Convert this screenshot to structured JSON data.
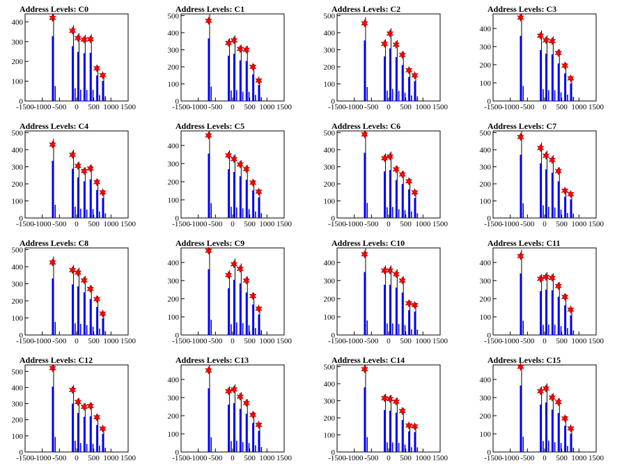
{
  "chart_data": [
    {
      "type": "bar",
      "title": "Address Levels: C0",
      "xlim": [
        -1500,
        1500
      ],
      "ylim": [
        0,
        440
      ],
      "yticks": [
        0,
        100,
        200,
        300,
        400
      ],
      "xticks": [
        -1500,
        -1000,
        -500,
        0,
        500,
        1000,
        1500
      ],
      "xtick_labels": [
        "-1500",
        "-1000",
        "-500",
        "0",
        "500",
        "1000",
        "1500"
      ],
      "peaks_x": [
        -700,
        -120,
        40,
        220,
        400,
        590,
        760
      ],
      "peaks_y": [
        420,
        355,
        318,
        310,
        312,
        165,
        130
      ],
      "colors": {
        "hist": "#0000ff",
        "peak_line": "#000000",
        "marker": "#ff0000"
      }
    },
    {
      "type": "bar",
      "title": "Address Levels: C1",
      "xlim": [
        -1500,
        1500
      ],
      "ylim": [
        0,
        510
      ],
      "yticks": [
        0,
        100,
        200,
        300,
        400,
        500
      ],
      "xticks": [
        -1500,
        -1000,
        -500,
        0,
        500,
        1000,
        1500
      ],
      "xtick_labels": [
        "-1500",
        "-1000",
        "-500",
        "0",
        "500",
        "1000",
        "1500"
      ],
      "peaks_x": [
        -700,
        -120,
        40,
        220,
        400,
        590,
        760
      ],
      "peaks_y": [
        470,
        340,
        355,
        305,
        300,
        200,
        120
      ],
      "colors": {
        "hist": "#0000ff",
        "peak_line": "#000000",
        "marker": "#ff0000"
      }
    },
    {
      "type": "bar",
      "title": "Address Levels: C2",
      "xlim": [
        -1500,
        1500
      ],
      "ylim": [
        0,
        510
      ],
      "yticks": [
        0,
        100,
        200,
        300,
        400,
        500
      ],
      "xticks": [
        -1500,
        -1000,
        -500,
        0,
        500,
        1000,
        1500
      ],
      "xtick_labels": [
        "-1500",
        "-1000",
        "-500",
        "0",
        "500",
        "1000",
        "1500"
      ],
      "peaks_x": [
        -700,
        -120,
        40,
        220,
        400,
        590,
        760
      ],
      "peaks_y": [
        455,
        335,
        395,
        330,
        270,
        180,
        150
      ],
      "colors": {
        "hist": "#0000ff",
        "peak_line": "#000000",
        "marker": "#ff0000"
      }
    },
    {
      "type": "bar",
      "title": "Address Levels: C3",
      "xlim": [
        -1500,
        1500
      ],
      "ylim": [
        0,
        480
      ],
      "yticks": [
        0,
        100,
        200,
        300,
        400
      ],
      "xticks": [
        -1500,
        -1000,
        -500,
        0,
        500,
        1000,
        1500
      ],
      "xtick_labels": [
        "-1500",
        "-1000",
        "-500",
        "0",
        "500",
        "1000",
        "1500"
      ],
      "peaks_x": [
        -700,
        -120,
        40,
        220,
        400,
        590,
        760
      ],
      "peaks_y": [
        460,
        360,
        335,
        330,
        265,
        195,
        125
      ],
      "colors": {
        "hist": "#0000ff",
        "peak_line": "#000000",
        "marker": "#ff0000"
      }
    },
    {
      "type": "bar",
      "title": "Address Levels: C4",
      "xlim": [
        -1500,
        1500
      ],
      "ylim": [
        0,
        510
      ],
      "yticks": [
        0,
        100,
        200,
        300,
        400,
        500
      ],
      "xticks": [
        -1500,
        -1000,
        -500,
        0,
        500,
        1000,
        1500
      ],
      "xtick_labels": [
        "-1500",
        "-1000",
        "-500",
        "0",
        "500",
        "1000",
        "1500"
      ],
      "peaks_x": [
        -700,
        -120,
        40,
        220,
        400,
        590,
        760
      ],
      "peaks_y": [
        430,
        370,
        305,
        275,
        290,
        210,
        150
      ],
      "colors": {
        "hist": "#0000ff",
        "peak_line": "#000000",
        "marker": "#ff0000"
      }
    },
    {
      "type": "bar",
      "title": "Address Levels: C5",
      "xlim": [
        -1500,
        1500
      ],
      "ylim": [
        0,
        480
      ],
      "yticks": [
        0,
        100,
        200,
        300,
        400
      ],
      "xticks": [
        -1500,
        -1000,
        -500,
        0,
        500,
        1000,
        1500
      ],
      "xtick_labels": [
        "-1500",
        "-1000",
        "-500",
        "0",
        "500",
        "1000",
        "1500"
      ],
      "peaks_x": [
        -700,
        -120,
        40,
        220,
        400,
        590,
        760
      ],
      "peaks_y": [
        455,
        345,
        325,
        295,
        270,
        195,
        145
      ],
      "colors": {
        "hist": "#0000ff",
        "peak_line": "#000000",
        "marker": "#ff0000"
      }
    },
    {
      "type": "bar",
      "title": "Address Levels: C6",
      "xlim": [
        -1500,
        1500
      ],
      "ylim": [
        0,
        510
      ],
      "yticks": [
        0,
        100,
        200,
        300,
        400,
        500
      ],
      "xticks": [
        -1500,
        -1000,
        -500,
        0,
        500,
        1000,
        1500
      ],
      "xtick_labels": [
        "-1500",
        "-1000",
        "-500",
        "0",
        "500",
        "1000",
        "1500"
      ],
      "peaks_x": [
        -700,
        -120,
        40,
        220,
        400,
        590,
        760
      ],
      "peaks_y": [
        490,
        350,
        360,
        285,
        255,
        215,
        150
      ],
      "colors": {
        "hist": "#0000ff",
        "peak_line": "#000000",
        "marker": "#ff0000"
      }
    },
    {
      "type": "bar",
      "title": "Address Levels: C7",
      "xlim": [
        -1500,
        1500
      ],
      "ylim": [
        0,
        510
      ],
      "yticks": [
        0,
        100,
        200,
        300,
        400,
        500
      ],
      "xticks": [
        -1500,
        -1000,
        -500,
        0,
        500,
        1000,
        1500
      ],
      "xtick_labels": [
        "-1500",
        "-1000",
        "-500",
        "0",
        "500",
        "1000",
        "1500"
      ],
      "peaks_x": [
        -700,
        -120,
        40,
        220,
        400,
        590,
        760
      ],
      "peaks_y": [
        475,
        410,
        365,
        340,
        275,
        160,
        140
      ],
      "colors": {
        "hist": "#0000ff",
        "peak_line": "#000000",
        "marker": "#ff0000"
      }
    },
    {
      "type": "bar",
      "title": "Address Levels: C8",
      "xlim": [
        -1500,
        1500
      ],
      "ylim": [
        0,
        510
      ],
      "yticks": [
        0,
        100,
        200,
        300,
        400,
        500
      ],
      "xticks": [
        -1500,
        -1000,
        -500,
        0,
        500,
        1000,
        1500
      ],
      "xtick_labels": [
        "-1500",
        "-1000",
        "-500",
        "0",
        "500",
        "1000",
        "1500"
      ],
      "peaks_x": [
        -700,
        -120,
        40,
        220,
        400,
        590,
        760
      ],
      "peaks_y": [
        425,
        380,
        365,
        320,
        270,
        210,
        125
      ],
      "colors": {
        "hist": "#0000ff",
        "peak_line": "#000000",
        "marker": "#ff0000"
      }
    },
    {
      "type": "bar",
      "title": "Address Levels: C9",
      "xlim": [
        -1500,
        1500
      ],
      "ylim": [
        0,
        480
      ],
      "yticks": [
        0,
        100,
        200,
        300,
        400
      ],
      "xticks": [
        -1500,
        -1000,
        -500,
        0,
        500,
        1000,
        1500
      ],
      "xtick_labels": [
        "-1500",
        "-1000",
        "-500",
        "0",
        "500",
        "1000",
        "1500"
      ],
      "peaks_x": [
        -700,
        -120,
        40,
        220,
        400,
        590,
        760
      ],
      "peaks_y": [
        465,
        330,
        390,
        365,
        300,
        215,
        145
      ],
      "colors": {
        "hist": "#0000ff",
        "peak_line": "#000000",
        "marker": "#ff0000"
      }
    },
    {
      "type": "bar",
      "title": "Address Levels: C10",
      "xlim": [
        -1500,
        1500
      ],
      "ylim": [
        0,
        480
      ],
      "yticks": [
        0,
        100,
        200,
        300,
        400
      ],
      "xticks": [
        -1500,
        -1000,
        -500,
        0,
        500,
        1000,
        1500
      ],
      "xtick_labels": [
        "-1500",
        "-1000",
        "-500",
        "0",
        "500",
        "1000",
        "1500"
      ],
      "peaks_x": [
        -700,
        -120,
        40,
        220,
        400,
        590,
        760
      ],
      "peaks_y": [
        445,
        355,
        355,
        335,
        300,
        175,
        165
      ],
      "colors": {
        "hist": "#0000ff",
        "peak_line": "#000000",
        "marker": "#ff0000"
      }
    },
    {
      "type": "bar",
      "title": "Address Levels: C11",
      "xlim": [
        -1500,
        1500
      ],
      "ylim": [
        0,
        480
      ],
      "yticks": [
        0,
        100,
        200,
        300,
        400
      ],
      "xticks": [
        -1500,
        -1000,
        -500,
        0,
        500,
        1000,
        1500
      ],
      "xtick_labels": [
        "-1500",
        "-1000",
        "-500",
        "0",
        "500",
        "1000",
        "1500"
      ],
      "peaks_x": [
        -700,
        -120,
        40,
        220,
        400,
        590,
        760
      ],
      "peaks_y": [
        435,
        310,
        320,
        315,
        270,
        210,
        140
      ],
      "colors": {
        "hist": "#0000ff",
        "peak_line": "#000000",
        "marker": "#ff0000"
      }
    },
    {
      "type": "bar",
      "title": "Address Levels: C12",
      "xlim": [
        -1500,
        1500
      ],
      "ylim": [
        0,
        540
      ],
      "yticks": [
        0,
        100,
        200,
        300,
        400,
        500
      ],
      "xticks": [
        -1500,
        -1000,
        -500,
        0,
        500,
        1000,
        1500
      ],
      "xtick_labels": [
        "-1500",
        "-1000",
        "-500",
        "0",
        "500",
        "1000",
        "1500"
      ],
      "peaks_x": [
        -700,
        -120,
        40,
        220,
        400,
        590,
        760
      ],
      "peaks_y": [
        520,
        385,
        310,
        280,
        285,
        215,
        145
      ],
      "colors": {
        "hist": "#0000ff",
        "peak_line": "#000000",
        "marker": "#ff0000"
      }
    },
    {
      "type": "bar",
      "title": "Address Levels: C13",
      "xlim": [
        -1500,
        1500
      ],
      "ylim": [
        0,
        480
      ],
      "yticks": [
        0,
        100,
        200,
        300,
        400
      ],
      "xticks": [
        -1500,
        -1000,
        -500,
        0,
        500,
        1000,
        1500
      ],
      "xtick_labels": [
        "-1500",
        "-1000",
        "-500",
        "0",
        "500",
        "1000",
        "1500"
      ],
      "peaks_x": [
        -700,
        -120,
        40,
        220,
        400,
        590,
        760
      ],
      "peaks_y": [
        450,
        335,
        345,
        305,
        270,
        205,
        150
      ],
      "colors": {
        "hist": "#0000ff",
        "peak_line": "#000000",
        "marker": "#ff0000"
      }
    },
    {
      "type": "bar",
      "title": "Address Levels: C14",
      "xlim": [
        -1500,
        1500
      ],
      "ylim": [
        0,
        510
      ],
      "yticks": [
        0,
        100,
        200,
        300,
        400,
        500
      ],
      "xticks": [
        -1500,
        -1000,
        -500,
        0,
        500,
        1000,
        1500
      ],
      "xtick_labels": [
        "-1500",
        "-1000",
        "-500",
        "0",
        "500",
        "1000",
        "1500"
      ],
      "peaks_x": [
        -700,
        -120,
        40,
        220,
        400,
        590,
        760
      ],
      "peaks_y": [
        485,
        315,
        310,
        295,
        240,
        155,
        150
      ],
      "colors": {
        "hist": "#0000ff",
        "peak_line": "#000000",
        "marker": "#ff0000"
      }
    },
    {
      "type": "bar",
      "title": "Address Levels: C15",
      "xlim": [
        -1500,
        1500
      ],
      "ylim": [
        0,
        480
      ],
      "yticks": [
        0,
        100,
        200,
        300,
        400
      ],
      "xticks": [
        -1500,
        -1000,
        -500,
        0,
        500,
        1000,
        1500
      ],
      "xtick_labels": [
        "-1500",
        "-1000",
        "-500",
        "0",
        "500",
        "1000",
        "1500"
      ],
      "peaks_x": [
        -700,
        -120,
        40,
        220,
        400,
        590,
        760
      ],
      "peaks_y": [
        470,
        335,
        350,
        300,
        275,
        185,
        130
      ],
      "colors": {
        "hist": "#0000ff",
        "peak_line": "#000000",
        "marker": "#ff0000"
      }
    }
  ]
}
